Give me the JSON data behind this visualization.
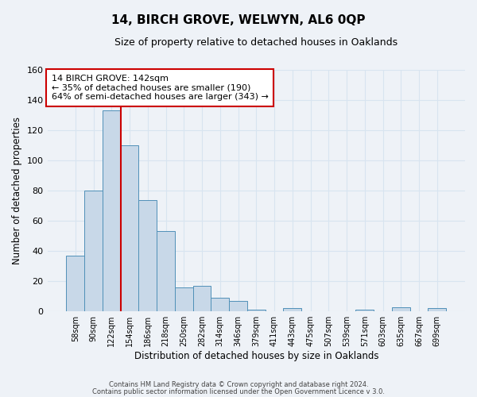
{
  "title": "14, BIRCH GROVE, WELWYN, AL6 0QP",
  "subtitle": "Size of property relative to detached houses in Oaklands",
  "xlabel": "Distribution of detached houses by size in Oaklands",
  "ylabel": "Number of detached properties",
  "bin_labels": [
    "58sqm",
    "90sqm",
    "122sqm",
    "154sqm",
    "186sqm",
    "218sqm",
    "250sqm",
    "282sqm",
    "314sqm",
    "346sqm",
    "379sqm",
    "411sqm",
    "443sqm",
    "475sqm",
    "507sqm",
    "539sqm",
    "571sqm",
    "603sqm",
    "635sqm",
    "667sqm",
    "699sqm"
  ],
  "bar_heights": [
    37,
    80,
    133,
    110,
    74,
    53,
    16,
    17,
    9,
    7,
    1,
    0,
    2,
    0,
    0,
    0,
    1,
    0,
    3,
    0,
    2
  ],
  "bar_color": "#c8d8e8",
  "bar_edge_color": "#5090b8",
  "vline_color": "#cc0000",
  "ylim": [
    0,
    160
  ],
  "yticks": [
    0,
    20,
    40,
    60,
    80,
    100,
    120,
    140,
    160
  ],
  "annotation_line1": "14 BIRCH GROVE: 142sqm",
  "annotation_line2": "← 35% of detached houses are smaller (190)",
  "annotation_line3": "64% of semi-detached houses are larger (343) →",
  "annotation_box_color": "#ffffff",
  "annotation_box_edge": "#cc0000",
  "footer_line1": "Contains HM Land Registry data © Crown copyright and database right 2024.",
  "footer_line2": "Contains public sector information licensed under the Open Government Licence v 3.0.",
  "background_color": "#eef2f7",
  "grid_color": "#d8e4f0"
}
